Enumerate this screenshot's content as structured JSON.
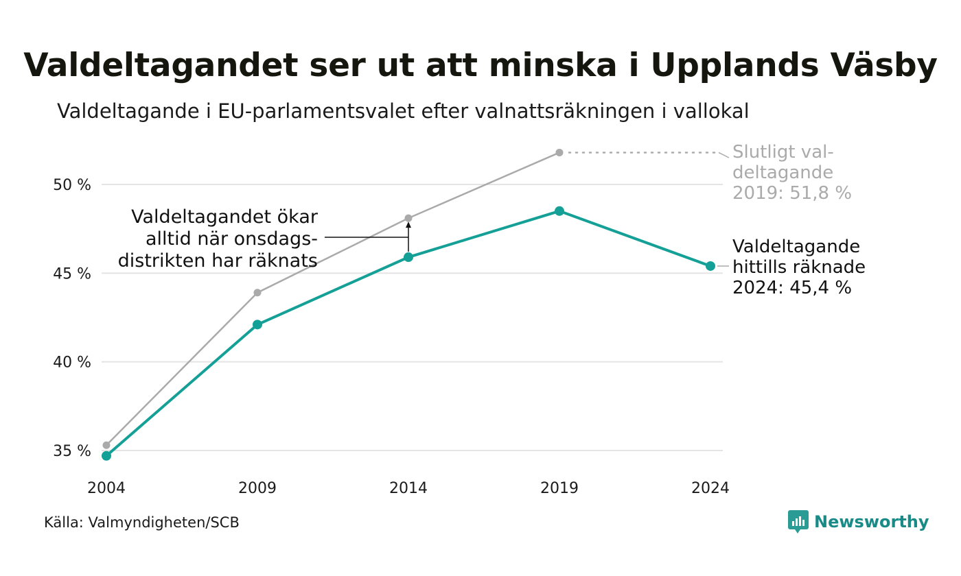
{
  "header": {
    "title": "Valdeltagandet ser ut att minska i Upplands Väsby",
    "subtitle": "Valdeltagande i EU-parlamentsvalet efter valnattsräkningen i vallokal"
  },
  "footer": {
    "source": "Källa: Valmyndigheten/SCB",
    "brand": "Newsworthy"
  },
  "colors": {
    "teal": "#14a096",
    "grey": "#aaaaaa",
    "grid": "#e4e4e4",
    "brand": "#1a8a86"
  },
  "chart_data": {
    "type": "line",
    "x": [
      2004,
      2009,
      2014,
      2019,
      2024
    ],
    "x_tick_labels": [
      "2004",
      "2009",
      "2014",
      "2019",
      "2024"
    ],
    "y_tick_labels": [
      "35 %",
      "40 %",
      "45 %",
      "50 %"
    ],
    "y_ticks": [
      35,
      40,
      45,
      50
    ],
    "ylim": [
      34.4,
      52.2
    ],
    "grid": true,
    "series": [
      {
        "key": "final",
        "color": "#aaaaaa",
        "values": [
          35.3,
          43.9,
          48.1,
          51.8,
          null
        ]
      },
      {
        "key": "counted",
        "color": "#14a096",
        "values": [
          34.7,
          42.1,
          45.9,
          48.5,
          45.4
        ]
      }
    ],
    "annotations": {
      "final_label": [
        "Slutligt val-",
        "deltagande",
        "2019: 51,8 %"
      ],
      "counted_label": [
        "Valdeltagande",
        "hittills räknade",
        "2024: 45,4 %"
      ],
      "note": [
        "Valdeltagandet ökar",
        "alltid när onsdags-",
        "distrikten har räknats"
      ]
    }
  }
}
